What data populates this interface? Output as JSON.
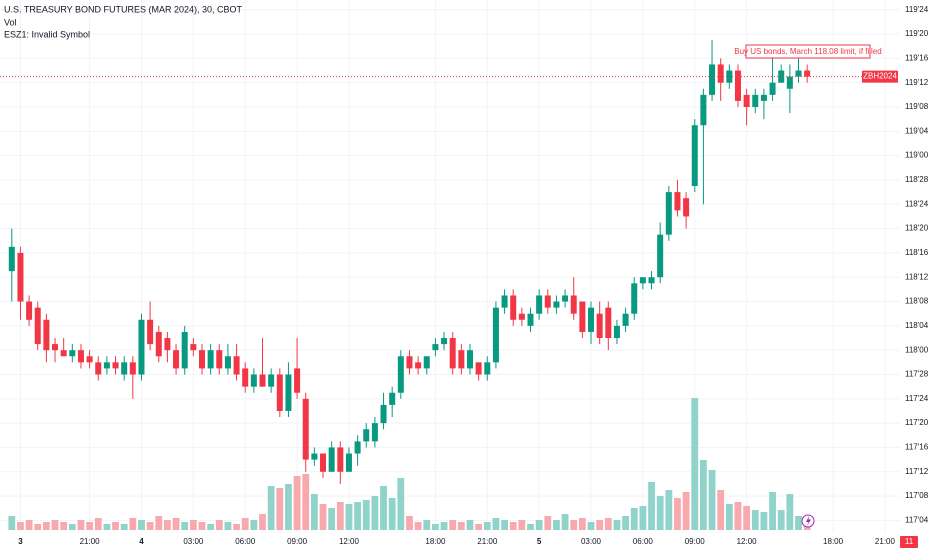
{
  "chart_data": {
    "type": "candlestick",
    "title": "U.S. TREASURY BOND FUTURES (MAR 2024), 30, CBOT",
    "volume_label": "Vol",
    "error_message": "ESZ1: Invalid Symbol",
    "order_annotation": "Buy US bonds, March 118.08 limit, if filled",
    "symbol_label": "ZBH2024",
    "countdown_label": "11",
    "up_color": "#089981",
    "down_color": "#f23645",
    "volume_up_color": "#8fd3cb",
    "volume_down_color": "#f7a9ae",
    "grid": true,
    "categories": [
      null,
      "3",
      null,
      null,
      null,
      null,
      null,
      null,
      null,
      "21:00",
      null,
      null,
      null,
      null,
      null,
      "4",
      null,
      null,
      null,
      null,
      null,
      "03:00",
      null,
      null,
      null,
      null,
      null,
      "06:00",
      null,
      null,
      null,
      null,
      null,
      "09:00",
      null,
      null,
      null,
      null,
      null,
      "12:00",
      null,
      null,
      null,
      null,
      null,
      null,
      null,
      null,
      null,
      "18:00",
      null,
      null,
      null,
      null,
      null,
      "21:00",
      null,
      null,
      null,
      null,
      null,
      "5",
      null,
      null,
      null,
      null,
      null,
      "03:00",
      null,
      null,
      null,
      null,
      null,
      "06:00",
      null,
      null,
      null,
      null,
      null,
      "09:00",
      null,
      null,
      null,
      null,
      null,
      "12:00",
      null,
      null,
      null,
      null,
      null,
      null,
      null,
      null,
      null,
      "18:00",
      null,
      null,
      null,
      null,
      null,
      "21:00"
    ],
    "open": [
      118.40625,
      118.5,
      118.25,
      118.21875,
      118.15625,
      118.03125,
      118,
      117.96875,
      118,
      117.96875,
      117.9375,
      117.90625,
      117.9375,
      117.875,
      117.9375,
      117.875,
      118.15625,
      118.09375,
      118.0625,
      118,
      117.90625,
      118.03125,
      118,
      117.90625,
      118,
      117.90625,
      117.96875,
      117.90625,
      117.8125,
      117.875,
      117.8125,
      117.875,
      117.6875,
      117.90625,
      117.75,
      117.4375,
      117.46875,
      117.375,
      117.5,
      117.375,
      117.46875,
      117.53125,
      117.53125,
      117.625,
      117.71875,
      117.78125,
      117.96875,
      117.9375,
      117.90625,
      118,
      118.03125,
      118.0625,
      118,
      117.90625,
      117.9375,
      117.875,
      117.9375,
      118.21875,
      118.28125,
      118.1875,
      118.125,
      118.1875,
      118.28125,
      118.21875,
      118.25,
      118.28125,
      118.25,
      118.09375,
      118.1875,
      118.21875,
      118.0625,
      118.125,
      118.1875,
      118.34375,
      118.34375,
      118.375,
      118.59375,
      118.8125,
      118.78125,
      118.84375,
      119.15625,
      119.3125,
      119.46875,
      119.375,
      119.4375,
      119.3125,
      119.25,
      119.28125,
      119.3125,
      119.375,
      119.34375,
      119.40625,
      119.4375,
      null,
      null,
      null,
      null,
      null,
      null,
      null,
      null,
      null
    ],
    "high": [
      118.625,
      118.53125,
      118.28125,
      118.25,
      118.1875,
      118.0625,
      118.0625,
      118.03125,
      118.03125,
      118,
      117.96875,
      117.96875,
      117.96875,
      117.96875,
      117.96875,
      118.1875,
      118.25,
      118.125,
      118.09375,
      118.03125,
      118.125,
      118.0625,
      118.03125,
      118.03125,
      118.03125,
      118.03125,
      118.03125,
      117.9375,
      117.90625,
      118.0625,
      117.90625,
      117.90625,
      117.9375,
      118.0625,
      117.78125,
      117.5,
      117.46875,
      117.53125,
      117.53125,
      117.5,
      117.5625,
      117.625,
      117.65625,
      117.78125,
      117.8125,
      118,
      118,
      117.96875,
      117.96875,
      118.0625,
      118.09375,
      118.09375,
      118.03125,
      118.03125,
      117.9375,
      117.96875,
      118.25,
      118.3125,
      118.3125,
      118.21875,
      118.21875,
      118.3125,
      118.3125,
      118.28125,
      118.3125,
      118.375,
      118.25,
      118.25,
      118.25,
      118.25,
      118.15625,
      118.21875,
      118.375,
      118.375,
      118.40625,
      118.65625,
      118.84375,
      118.875,
      118.8125,
      119.1875,
      119.34375,
      119.59375,
      119.5,
      119.46875,
      119.46875,
      119.34375,
      119.34375,
      119.34375,
      119.5625,
      119.46875,
      119.46875,
      119.5,
      119.46875,
      null,
      null,
      null,
      null,
      null,
      null,
      null,
      null,
      null
    ],
    "low": [
      118.25,
      118.15625,
      118.125,
      118,
      117.9375,
      117.9375,
      117.96875,
      117.9375,
      117.90625,
      117.90625,
      117.84375,
      117.875,
      117.875,
      117.84375,
      117.75,
      117.84375,
      118,
      117.9375,
      117.9375,
      117.875,
      117.875,
      117.96875,
      117.875,
      117.875,
      117.875,
      117.875,
      117.84375,
      117.78125,
      117.78125,
      117.8125,
      117.78125,
      117.65625,
      117.65625,
      117.75,
      117.375,
      117.40625,
      117.34375,
      117.375,
      117.3125,
      117.375,
      117.40625,
      117.5,
      117.5,
      117.59375,
      117.65625,
      117.75,
      117.875,
      117.875,
      117.875,
      117.96875,
      118,
      117.875,
      117.875,
      117.875,
      117.84375,
      117.84375,
      117.90625,
      118.1875,
      118.125,
      118.125,
      118.09375,
      118.15625,
      118.1875,
      118.1875,
      118.21875,
      118.15625,
      118.0625,
      118.03125,
      118.03125,
      118,
      118.03125,
      118.09375,
      118.15625,
      118.3125,
      118.3125,
      118.34375,
      118.5625,
      118.6875,
      118.625,
      118.8125,
      118.75,
      119.28125,
      119.28125,
      119.34375,
      119.25,
      119.15625,
      119.21875,
      119.1875,
      119.28125,
      119.375,
      119.21875,
      119.375,
      119.375,
      null,
      null,
      null,
      null,
      null,
      null,
      null,
      null,
      null
    ],
    "close": [
      118.53125,
      118.25,
      118.15625,
      118.03125,
      118,
      118,
      117.96875,
      118,
      117.9375,
      117.9375,
      117.875,
      117.9375,
      117.90625,
      117.9375,
      117.875,
      118.15625,
      118.03125,
      117.96875,
      118,
      117.90625,
      118.09375,
      118,
      117.90625,
      118,
      117.90625,
      117.96875,
      117.875,
      117.8125,
      117.875,
      117.8125,
      117.875,
      117.6875,
      117.875,
      117.78125,
      117.4375,
      117.46875,
      117.375,
      117.5,
      117.375,
      117.46875,
      117.53125,
      117.59375,
      117.625,
      117.71875,
      117.78125,
      117.96875,
      117.90625,
      117.90625,
      117.96875,
      118.03125,
      118.0625,
      117.90625,
      117.90625,
      118,
      117.875,
      117.9375,
      118.21875,
      118.28125,
      118.15625,
      118.15625,
      118.1875,
      118.28125,
      118.21875,
      118.25,
      118.28125,
      118.1875,
      118.09375,
      118.21875,
      118.0625,
      118.0625,
      118.125,
      118.1875,
      118.34375,
      118.375,
      118.375,
      118.59375,
      118.8125,
      118.71875,
      118.6875,
      119.15625,
      119.3125,
      119.46875,
      119.375,
      119.4375,
      119.28125,
      119.25,
      119.3125,
      119.3125,
      119.375,
      119.4375,
      119.40625,
      119.4375,
      119.40625,
      null,
      null,
      null,
      null,
      null,
      null,
      null,
      null,
      null
    ],
    "volume": [
      14,
      8,
      10,
      6,
      8,
      10,
      8,
      6,
      10,
      8,
      12,
      6,
      8,
      6,
      12,
      10,
      8,
      14,
      10,
      12,
      8,
      10,
      8,
      6,
      10,
      8,
      6,
      12,
      10,
      16,
      44,
      42,
      46,
      54,
      56,
      36,
      26,
      22,
      28,
      26,
      28,
      30,
      34,
      44,
      32,
      52,
      14,
      8,
      10,
      6,
      8,
      10,
      8,
      10,
      6,
      8,
      12,
      10,
      8,
      10,
      6,
      10,
      14,
      10,
      16,
      10,
      12,
      8,
      10,
      12,
      10,
      14,
      22,
      24,
      48,
      34,
      40,
      32,
      38,
      132,
      70,
      60,
      40,
      26,
      28,
      24,
      20,
      18,
      38,
      20,
      36,
      14,
      6,
      null,
      null,
      null,
      null,
      null,
      null,
      null,
      null,
      null
    ],
    "volume_lim": [
      0,
      140
    ],
    "ylim": [
      117.05,
      119.8
    ],
    "yticks": [
      {
        "value": 117.125,
        "label": "117'04"
      },
      {
        "value": 117.25,
        "label": "117'08"
      },
      {
        "value": 117.375,
        "label": "117'12"
      },
      {
        "value": 117.5,
        "label": "117'16"
      },
      {
        "value": 117.625,
        "label": "117'20"
      },
      {
        "value": 117.75,
        "label": "117'24"
      },
      {
        "value": 117.875,
        "label": "117'28"
      },
      {
        "value": 118,
        "label": "118'00"
      },
      {
        "value": 118.125,
        "label": "118'04"
      },
      {
        "value": 118.25,
        "label": "118'08"
      },
      {
        "value": 118.375,
        "label": "118'12"
      },
      {
        "value": 118.5,
        "label": "118'16"
      },
      {
        "value": 118.625,
        "label": "118'20"
      },
      {
        "value": 118.75,
        "label": "118'24"
      },
      {
        "value": 118.875,
        "label": "118'28"
      },
      {
        "value": 119,
        "label": "119'00"
      },
      {
        "value": 119.125,
        "label": "119'04"
      },
      {
        "value": 119.25,
        "label": "119'08"
      },
      {
        "value": 119.375,
        "label": "119'12"
      },
      {
        "value": 119.5,
        "label": "119'16"
      },
      {
        "value": 119.625,
        "label": "119'20"
      },
      {
        "value": 119.75,
        "label": "119'24"
      }
    ]
  }
}
